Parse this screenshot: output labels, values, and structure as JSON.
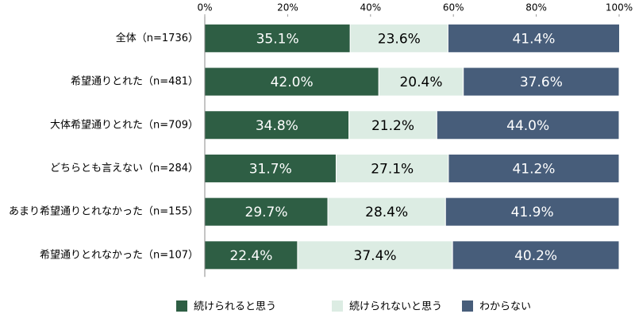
{
  "chart_data": {
    "type": "bar",
    "orientation": "horizontal",
    "stacked": true,
    "categories": [
      "全体（n=1736）",
      "希望通りとれた（n=481）",
      "大体希望通りとれた（n=709）",
      "どちらとも言えない（n=284）",
      "あまり希望通りとれなかった（n=155）",
      "希望通りとれなかった（n=107）"
    ],
    "series": [
      {
        "name": "続けられると思う",
        "color": "#2e5e44",
        "label_color": "#ffffff",
        "values": [
          35.1,
          42.0,
          34.8,
          31.7,
          29.7,
          22.4
        ],
        "value_labels": [
          "35.1%",
          "42.0%",
          "34.8%",
          "31.7%",
          "29.7%",
          "22.4%"
        ]
      },
      {
        "name": "続けられないと思う",
        "color": "#dcece3",
        "label_color": "#000000",
        "values": [
          23.6,
          20.4,
          21.2,
          27.1,
          28.4,
          37.4
        ],
        "value_labels": [
          "23.6%",
          "20.4%",
          "21.2%",
          "27.1%",
          "28.4%",
          "37.4%"
        ]
      },
      {
        "name": "わからない",
        "color": "#475d7a",
        "label_color": "#ffffff",
        "values": [
          41.4,
          37.6,
          44.0,
          41.2,
          41.9,
          40.2
        ],
        "value_labels": [
          "41.4%",
          "37.6%",
          "44.0%",
          "41.2%",
          "41.9%",
          "40.2%"
        ]
      }
    ],
    "xlim": [
      0,
      100
    ],
    "xticks": [
      {
        "value": 0,
        "label": "0%"
      },
      {
        "value": 20,
        "label": "20%"
      },
      {
        "value": 40,
        "label": "40%"
      },
      {
        "value": 60,
        "label": "60%"
      },
      {
        "value": 80,
        "label": "80%"
      },
      {
        "value": 100,
        "label": "100%"
      }
    ],
    "legend": "bottom"
  }
}
